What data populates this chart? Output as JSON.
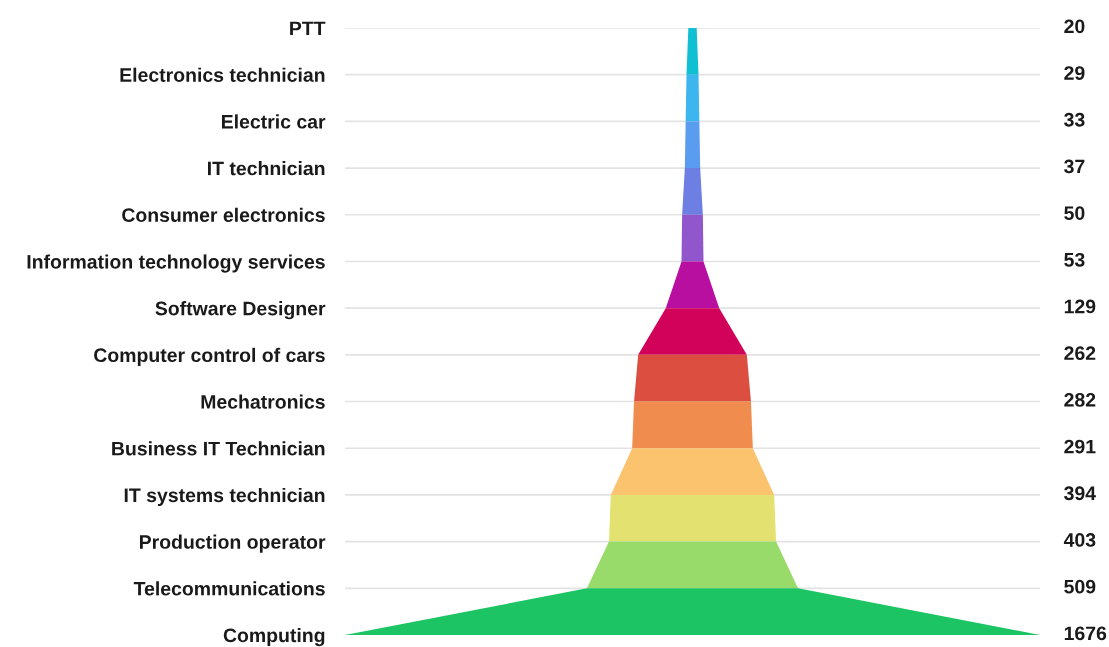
{
  "chart_data": {
    "type": "other",
    "categories": [
      "PTT",
      "Electronics technician",
      "Electric car",
      "IT technician",
      "Consumer electronics",
      "Information technology services",
      "Software Designer",
      "Computer control of cars",
      "Mechatronics",
      "Business IT Technician",
      "IT systems technician",
      "Production operator",
      "Telecommunications",
      "Computing"
    ],
    "values": [
      20,
      29,
      33,
      37,
      50,
      53,
      129,
      262,
      282,
      291,
      394,
      403,
      509,
      1676
    ],
    "colors": [
      "#0fc0d3",
      "#3db5ef",
      "#5a9cf0",
      "#6e7fe3",
      "#9155cc",
      "#b80fa0",
      "#d2015a",
      "#dc4f40",
      "#f08c4e",
      "#fbc36e",
      "#e3e16f",
      "#98db6b",
      "#1dc463",
      null
    ],
    "data_labels": true
  }
}
